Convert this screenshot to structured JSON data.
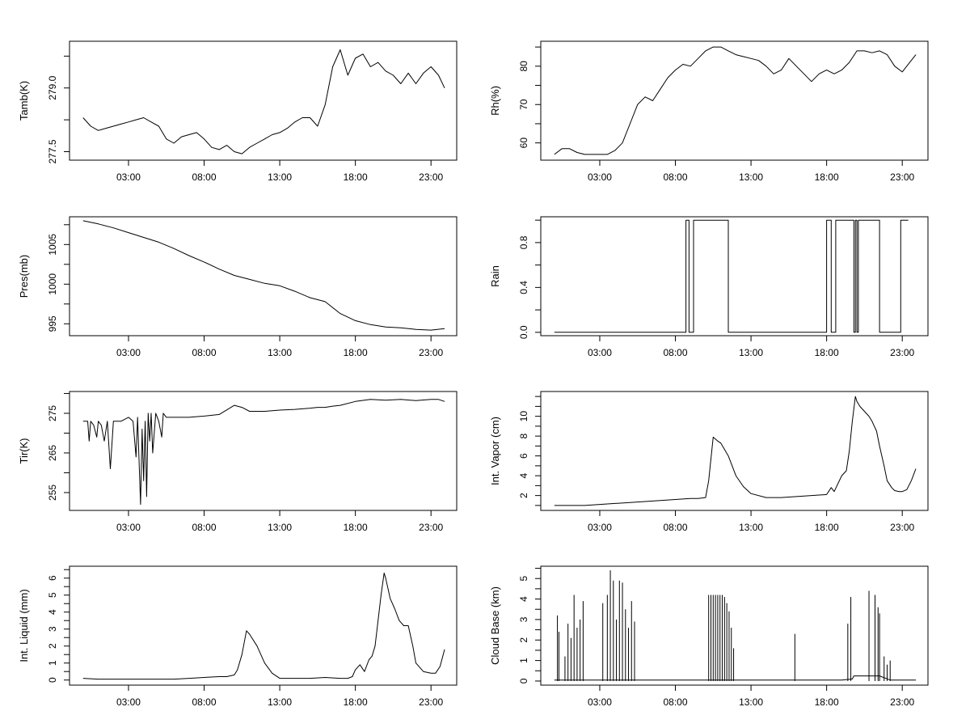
{
  "chart_data": [
    {
      "id": "tamb",
      "type": "line",
      "ylabel": "Tamb(K)",
      "xticks": [
        "03:00",
        "08:00",
        "13:00",
        "18:00",
        "23:00"
      ],
      "ytick_labels": [
        "277.5",
        "279.0"
      ],
      "ytick_values": [
        277.5,
        279.0
      ],
      "ylim": [
        277.3,
        280.1
      ],
      "grid": false,
      "series": [
        {
          "x": [
            0.0,
            0.5,
            1.0,
            1.5,
            2.0,
            2.5,
            3.0,
            3.5,
            4.0,
            4.5,
            5.0,
            5.5,
            6.0,
            6.5,
            7.0,
            7.5,
            8.0,
            8.5,
            9.0,
            9.5,
            10.0,
            10.5,
            11.0,
            11.5,
            12.0,
            12.5,
            13.0,
            13.5,
            14.0,
            14.5,
            15.0,
            15.5,
            16.0,
            16.5,
            17.0,
            17.5,
            18.0,
            18.5,
            19.0,
            19.5,
            20.0,
            20.5,
            21.0,
            21.5,
            22.0,
            22.5,
            23.0,
            23.5,
            23.9
          ],
          "y": [
            278.3,
            278.1,
            278.0,
            278.05,
            278.1,
            278.15,
            278.2,
            278.25,
            278.3,
            278.2,
            278.1,
            277.8,
            277.7,
            277.85,
            277.9,
            277.95,
            277.8,
            277.6,
            277.55,
            277.65,
            277.5,
            277.45,
            277.6,
            277.7,
            277.8,
            277.9,
            277.95,
            278.05,
            278.2,
            278.3,
            278.3,
            278.1,
            278.6,
            279.5,
            279.9,
            279.3,
            279.7,
            279.8,
            279.5,
            279.6,
            279.4,
            279.3,
            279.1,
            279.35,
            279.1,
            279.35,
            279.5,
            279.3,
            279.0
          ]
        }
      ]
    },
    {
      "id": "rh",
      "type": "line",
      "ylabel": "Rh(%)",
      "xticks": [
        "03:00",
        "08:00",
        "13:00",
        "18:00",
        "23:00"
      ],
      "ytick_labels": [
        "60",
        "70",
        "80"
      ],
      "ytick_values": [
        60,
        70,
        80
      ],
      "ylim": [
        55.5,
        86.5
      ],
      "grid": false,
      "series": [
        {
          "x": [
            0.0,
            0.5,
            1.0,
            1.5,
            2.0,
            2.5,
            3.0,
            3.5,
            4.0,
            4.5,
            5.0,
            5.5,
            6.0,
            6.5,
            7.0,
            7.5,
            8.0,
            8.5,
            9.0,
            9.5,
            10.0,
            10.5,
            11.0,
            11.5,
            12.0,
            12.5,
            13.0,
            13.5,
            14.0,
            14.5,
            15.0,
            15.5,
            16.0,
            16.5,
            17.0,
            17.5,
            18.0,
            18.5,
            19.0,
            19.5,
            20.0,
            20.5,
            21.0,
            21.5,
            22.0,
            22.5,
            23.0,
            23.5,
            23.9
          ],
          "y": [
            57.0,
            58.5,
            58.5,
            57.5,
            57.0,
            57.0,
            57.0,
            57.0,
            58.0,
            60.0,
            65.0,
            70.0,
            72.0,
            71.0,
            74.0,
            77.0,
            79.0,
            80.5,
            80.0,
            82.0,
            84.0,
            85.0,
            85.0,
            84.0,
            83.0,
            82.5,
            82.0,
            81.5,
            80.0,
            78.0,
            79.0,
            82.0,
            80.0,
            78.0,
            76.0,
            78.0,
            79.0,
            78.0,
            79.0,
            81.0,
            84.0,
            84.0,
            83.5,
            84.0,
            83.0,
            80.0,
            78.5,
            81.0,
            83.0
          ]
        }
      ]
    },
    {
      "id": "pres",
      "type": "line",
      "ylabel": "Pres(mb)",
      "xticks": [
        "03:00",
        "08:00",
        "13:00",
        "18:00",
        "23:00"
      ],
      "ytick_labels": [
        "995",
        "1000",
        "1005"
      ],
      "ytick_values": [
        995,
        1000,
        1005
      ],
      "ylim": [
        993.5,
        1008.5
      ],
      "grid": false,
      "series": [
        {
          "x": [
            0.0,
            1.0,
            2.0,
            3.0,
            4.0,
            5.0,
            6.0,
            7.0,
            8.0,
            9.0,
            10.0,
            11.0,
            12.0,
            13.0,
            14.0,
            15.0,
            16.0,
            17.0,
            18.0,
            19.0,
            20.0,
            21.0,
            22.0,
            23.0,
            23.9
          ],
          "y": [
            1008.0,
            1007.6,
            1007.1,
            1006.5,
            1005.9,
            1005.3,
            1004.5,
            1003.6,
            1002.8,
            1001.9,
            1001.1,
            1000.6,
            1000.1,
            999.8,
            999.1,
            998.3,
            997.8,
            996.3,
            995.4,
            994.9,
            994.6,
            994.5,
            994.3,
            994.2,
            994.4
          ]
        }
      ]
    },
    {
      "id": "rain",
      "type": "line",
      "ylabel": "Rain",
      "xticks": [
        "03:00",
        "08:00",
        "13:00",
        "18:00",
        "23:00"
      ],
      "ytick_labels": [
        "0.0",
        "0.4",
        "0.8"
      ],
      "ytick_values": [
        0.0,
        0.4,
        0.8
      ],
      "ylim": [
        -0.03,
        1.03
      ],
      "grid": false,
      "series": [
        {
          "x": [
            0.0,
            8.7,
            8.7,
            8.9,
            8.9,
            9.2,
            9.2,
            9.35,
            9.35,
            11.5,
            11.5,
            18.0,
            18.0,
            18.3,
            18.3,
            18.6,
            18.6,
            19.8,
            19.8,
            19.9,
            19.9,
            20.0,
            20.0,
            20.1,
            20.1,
            21.5,
            21.5,
            22.9,
            22.9,
            23.4
          ],
          "y": [
            0,
            0,
            1,
            1,
            0,
            0,
            1,
            1,
            1,
            1,
            0,
            0,
            1,
            1,
            0,
            0,
            1,
            1,
            0,
            0,
            1,
            1,
            0,
            0,
            1,
            1,
            0,
            0,
            1,
            1
          ]
        }
      ]
    },
    {
      "id": "tir",
      "type": "line",
      "ylabel": "Tir(K)",
      "xticks": [
        "03:00",
        "08:00",
        "13:00",
        "18:00",
        "23:00"
      ],
      "ytick_labels": [
        "255",
        "265",
        "275"
      ],
      "ytick_values": [
        255,
        265,
        275
      ],
      "ylim": [
        250.5,
        280.5
      ],
      "grid": false,
      "series": [
        {
          "x": [
            0.0,
            0.3,
            0.4,
            0.5,
            0.7,
            0.9,
            1.0,
            1.2,
            1.4,
            1.6,
            1.8,
            2.0,
            2.5,
            3.0,
            3.3,
            3.5,
            3.6,
            3.8,
            3.9,
            4.0,
            4.1,
            4.2,
            4.3,
            4.4,
            4.5,
            4.6,
            4.8,
            5.0,
            5.2,
            5.3,
            5.5,
            5.7,
            6.0,
            6.5,
            7.0,
            8.0,
            9.0,
            10.0,
            10.5,
            11.0,
            12.0,
            13.0,
            14.0,
            15.0,
            15.5,
            16.0,
            16.5,
            17.0,
            18.0,
            19.0,
            20.0,
            21.0,
            22.0,
            23.0,
            23.5,
            23.9
          ],
          "y": [
            273,
            273,
            268,
            273,
            272,
            269,
            273,
            272,
            268,
            273,
            261,
            273,
            273,
            274,
            273,
            264,
            274,
            252,
            271,
            258,
            273,
            254,
            275,
            268,
            275,
            265,
            275,
            273,
            269,
            275,
            274,
            274,
            274,
            274,
            274,
            274.3,
            274.7,
            277,
            276.5,
            275.5,
            275.5,
            275.8,
            276,
            276.3,
            276.5,
            276.5,
            276.8,
            277,
            278,
            278.5,
            278.3,
            278.5,
            278.2,
            278.5,
            278.5,
            278
          ]
        }
      ]
    },
    {
      "id": "vapor",
      "type": "line",
      "ylabel": "Int. Vapor (cm)",
      "xticks": [
        "03:00",
        "08:00",
        "13:00",
        "18:00",
        "23:00"
      ],
      "ytick_labels": [
        "2",
        "4",
        "6",
        "8",
        "10"
      ],
      "ytick_values": [
        2,
        4,
        6,
        8,
        10
      ],
      "ylim": [
        0.5,
        12.5
      ],
      "grid": false,
      "series": [
        {
          "x": [
            0.0,
            1.0,
            2.0,
            3.0,
            4.0,
            5.0,
            6.0,
            7.0,
            8.0,
            9.0,
            9.5,
            10.0,
            10.2,
            10.5,
            10.8,
            11.0,
            11.5,
            12.0,
            12.5,
            13.0,
            14.0,
            15.0,
            16.0,
            17.0,
            18.0,
            18.3,
            18.5,
            19.0,
            19.3,
            19.5,
            19.7,
            19.9,
            20.0,
            20.2,
            20.5,
            20.8,
            21.0,
            21.3,
            21.5,
            21.8,
            22.0,
            22.3,
            22.5,
            22.8,
            23.0,
            23.3,
            23.6,
            23.9
          ],
          "y": [
            1.0,
            1.0,
            1.0,
            1.1,
            1.2,
            1.3,
            1.4,
            1.5,
            1.6,
            1.7,
            1.7,
            1.8,
            3.5,
            7.9,
            7.5,
            7.3,
            6.0,
            4.0,
            2.9,
            2.2,
            1.8,
            1.8,
            1.9,
            2.0,
            2.1,
            2.8,
            2.4,
            4.0,
            4.5,
            6.5,
            9.5,
            12.0,
            11.5,
            11.0,
            10.5,
            10.0,
            9.5,
            8.5,
            7.0,
            5.0,
            3.5,
            2.8,
            2.5,
            2.4,
            2.4,
            2.6,
            3.5,
            4.7
          ]
        }
      ]
    },
    {
      "id": "liquid",
      "type": "line",
      "ylabel": "Int. Liquid (mm)",
      "xticks": [
        "03:00",
        "08:00",
        "13:00",
        "18:00",
        "23:00"
      ],
      "ytick_labels": [
        "0",
        "1",
        "2",
        "3",
        "4",
        "5",
        "6"
      ],
      "ytick_values": [
        0,
        1,
        2,
        3,
        4,
        5,
        6
      ],
      "ylim": [
        -0.3,
        6.7
      ],
      "grid": false,
      "series": [
        {
          "x": [
            0.0,
            1.0,
            2.0,
            3.0,
            4.0,
            5.0,
            6.0,
            7.0,
            8.0,
            9.0,
            9.5,
            10.0,
            10.2,
            10.5,
            10.8,
            11.0,
            11.5,
            12.0,
            12.5,
            13.0,
            14.0,
            15.0,
            16.0,
            17.0,
            17.5,
            17.8,
            18.0,
            18.3,
            18.6,
            18.9,
            19.1,
            19.3,
            19.5,
            19.7,
            19.9,
            20.0,
            20.3,
            20.6,
            20.9,
            21.2,
            21.5,
            21.8,
            22.0,
            22.5,
            23.0,
            23.3,
            23.6,
            23.9
          ],
          "y": [
            0.1,
            0.05,
            0.05,
            0.05,
            0.05,
            0.05,
            0.05,
            0.1,
            0.15,
            0.2,
            0.2,
            0.3,
            0.6,
            1.5,
            2.9,
            2.7,
            2.0,
            1.0,
            0.4,
            0.1,
            0.1,
            0.1,
            0.15,
            0.1,
            0.1,
            0.2,
            0.6,
            0.9,
            0.5,
            1.2,
            1.4,
            2.0,
            3.5,
            5.0,
            6.3,
            6.0,
            4.8,
            4.2,
            3.5,
            3.2,
            3.2,
            2.0,
            1.0,
            0.5,
            0.4,
            0.4,
            0.8,
            1.8
          ]
        }
      ]
    },
    {
      "id": "cloudbase",
      "type": "line",
      "ylabel": "Cloud Base (km)",
      "xticks": [
        "03:00",
        "08:00",
        "13:00",
        "18:00",
        "23:00"
      ],
      "ytick_labels": [
        "0",
        "1",
        "2",
        "3",
        "4",
        "5"
      ],
      "ytick_values": [
        0,
        1,
        2,
        3,
        4,
        5
      ],
      "ylim": [
        -0.2,
        5.6
      ],
      "grid": false,
      "spikes": [
        {
          "x": 0.2,
          "y": 3.2
        },
        {
          "x": 0.3,
          "y": 2.4
        },
        {
          "x": 0.7,
          "y": 1.2
        },
        {
          "x": 0.9,
          "y": 2.8
        },
        {
          "x": 1.1,
          "y": 2.1
        },
        {
          "x": 1.3,
          "y": 4.2
        },
        {
          "x": 1.5,
          "y": 2.6
        },
        {
          "x": 1.7,
          "y": 3.0
        },
        {
          "x": 1.9,
          "y": 3.9
        },
        {
          "x": 3.2,
          "y": 3.8
        },
        {
          "x": 3.5,
          "y": 4.2
        },
        {
          "x": 3.7,
          "y": 5.4
        },
        {
          "x": 3.9,
          "y": 4.9
        },
        {
          "x": 4.1,
          "y": 3.0
        },
        {
          "x": 4.3,
          "y": 4.9
        },
        {
          "x": 4.5,
          "y": 4.8
        },
        {
          "x": 4.7,
          "y": 3.5
        },
        {
          "x": 4.9,
          "y": 2.6
        },
        {
          "x": 5.1,
          "y": 3.9
        },
        {
          "x": 5.3,
          "y": 2.9
        },
        {
          "x": 10.2,
          "y": 4.2
        },
        {
          "x": 10.35,
          "y": 4.2
        },
        {
          "x": 10.5,
          "y": 4.2
        },
        {
          "x": 10.65,
          "y": 4.2
        },
        {
          "x": 10.8,
          "y": 4.2
        },
        {
          "x": 10.95,
          "y": 4.2
        },
        {
          "x": 11.1,
          "y": 4.2
        },
        {
          "x": 11.25,
          "y": 4.1
        },
        {
          "x": 11.4,
          "y": 3.8
        },
        {
          "x": 11.55,
          "y": 3.4
        },
        {
          "x": 11.7,
          "y": 2.6
        },
        {
          "x": 11.85,
          "y": 1.6
        },
        {
          "x": 15.9,
          "y": 2.3
        },
        {
          "x": 19.4,
          "y": 2.8
        },
        {
          "x": 19.6,
          "y": 4.1
        },
        {
          "x": 20.8,
          "y": 4.4
        },
        {
          "x": 21.2,
          "y": 4.2
        },
        {
          "x": 21.4,
          "y": 3.6
        },
        {
          "x": 21.5,
          "y": 3.3
        },
        {
          "x": 21.8,
          "y": 1.2
        },
        {
          "x": 22.0,
          "y": 0.8
        },
        {
          "x": 22.2,
          "y": 1.0
        }
      ],
      "series": [
        {
          "x": [
            0.0,
            5.5,
            10.0,
            12.0,
            15.0,
            19.0,
            19.7,
            19.8,
            21.0,
            21.2,
            21.5,
            22.2,
            23.9
          ],
          "y": [
            0.05,
            0.05,
            0.05,
            0.05,
            0.05,
            0.05,
            0.1,
            0.25,
            0.25,
            0.25,
            0.25,
            0.05,
            0.05
          ]
        }
      ]
    }
  ]
}
